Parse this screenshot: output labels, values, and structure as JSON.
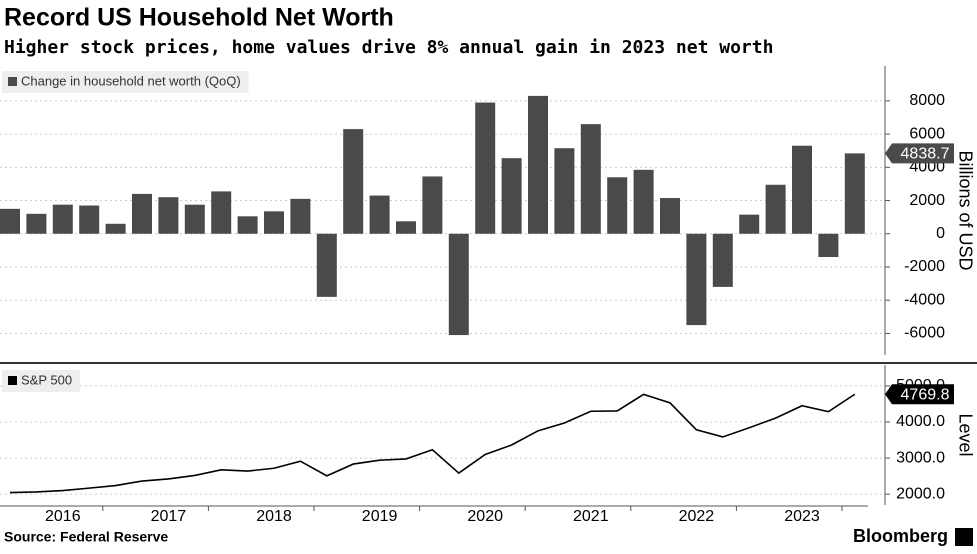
{
  "title": "Record US Household Net Worth",
  "subtitle": "Higher stock prices, home values drive 8% annual gain in 2023 net worth",
  "source": "Source: Federal Reserve",
  "brand": "Bloomberg",
  "chart_data": [
    {
      "type": "bar",
      "legend": "Change in household net worth (QoQ)",
      "color": "#4a4a4a",
      "ylabel": "Billions of USD",
      "values": [
        1500,
        1200,
        1750,
        1700,
        600,
        2400,
        2200,
        1750,
        2550,
        1050,
        1350,
        2100,
        -3800,
        6300,
        2300,
        750,
        3450,
        -6100,
        7900,
        4550,
        8300,
        5150,
        6600,
        3400,
        3850,
        2150,
        -5500,
        -3200,
        1150,
        2950,
        5300,
        -1400,
        4838.7
      ],
      "ylim": [
        -7300,
        10100
      ],
      "yticks": [
        -6000,
        -4000,
        -2000,
        0,
        2000,
        4000,
        6000,
        8000
      ],
      "last_value_label": "4838.7",
      "grid": true
    },
    {
      "type": "line",
      "legend": "S&P 500",
      "color": "#000000",
      "ylabel": "Level",
      "categories": [
        null,
        null,
        "2016",
        null,
        null,
        null,
        "2017",
        null,
        null,
        null,
        "2018",
        null,
        null,
        null,
        "2019",
        null,
        null,
        null,
        "2020",
        null,
        null,
        null,
        "2021",
        null,
        null,
        null,
        "2022",
        null,
        null,
        null,
        "2023",
        null,
        null
      ],
      "values": [
        2044,
        2063,
        2099,
        2168,
        2239,
        2363,
        2423,
        2519,
        2674,
        2641,
        2718,
        2914,
        2507,
        2834,
        2942,
        2977,
        3231,
        2585,
        3100,
        3363,
        3756,
        3973,
        4298,
        4308,
        4766,
        4530,
        3785,
        3586,
        3840,
        4109,
        4450,
        4288,
        4769.8
      ],
      "ylim": [
        1700,
        5580
      ],
      "yticks": [
        {
          "value": 2000,
          "label": "2000.0"
        },
        {
          "value": 3000,
          "label": "3000.0"
        },
        {
          "value": 4000,
          "label": "4000.0"
        },
        {
          "value": 5000,
          "label": "5000.0"
        }
      ],
      "last_value_label": "4769.8",
      "grid": true
    }
  ]
}
